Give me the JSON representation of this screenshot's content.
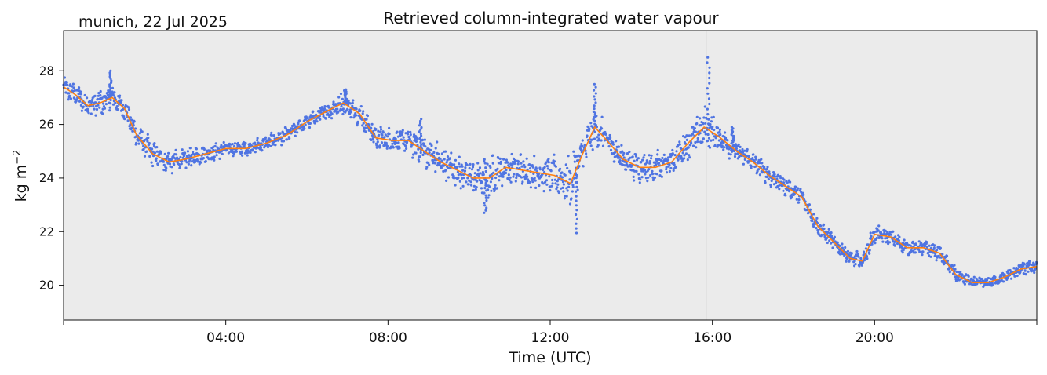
{
  "chart_data": {
    "type": "scatter",
    "title": "Retrieved column-integrated water vapour",
    "location_label": "munich, 22 Jul 2025",
    "xlabel": "Time (UTC)",
    "ylabel": "kg m",
    "ylabel_superscript": "−2",
    "x_unit": "hours UTC",
    "xlim": [
      0,
      24
    ],
    "ylim": [
      18.7,
      29.5
    ],
    "x_ticks": [
      {
        "value": 4,
        "label": "04:00"
      },
      {
        "value": 8,
        "label": "08:00"
      },
      {
        "value": 12,
        "label": "12:00"
      },
      {
        "value": 16,
        "label": "16:00"
      },
      {
        "value": 20,
        "label": "20:00"
      }
    ],
    "y_ticks": [
      {
        "value": 20,
        "label": "20"
      },
      {
        "value": 22,
        "label": "22"
      },
      {
        "value": 24,
        "label": "24"
      },
      {
        "value": 26,
        "label": "26"
      },
      {
        "value": 28,
        "label": "28"
      }
    ],
    "marker_vline": 15.85,
    "colors": {
      "background": "#ebebeb",
      "scatter": "#4169e1",
      "smooth": "#ff7f0e",
      "vline": "#d4d4d4"
    },
    "series": [
      {
        "name": "retrieval",
        "kind": "scatter",
        "x": [
          0.0,
          0.3,
          0.6,
          0.9,
          1.2,
          1.5,
          1.8,
          2.2,
          2.6,
          3.0,
          3.5,
          4.0,
          4.5,
          5.0,
          5.5,
          6.0,
          6.5,
          6.9,
          7.3,
          7.7,
          8.1,
          8.5,
          8.9,
          9.3,
          9.7,
          10.1,
          10.5,
          10.9,
          11.3,
          11.7,
          12.1,
          12.5,
          12.8,
          13.1,
          13.4,
          13.8,
          14.2,
          14.6,
          15.0,
          15.4,
          15.8,
          16.2,
          16.6,
          17.0,
          17.4,
          17.8,
          18.2,
          18.6,
          19.0,
          19.4,
          19.7,
          20.0,
          20.4,
          20.8,
          21.2,
          21.6,
          22.0,
          22.4,
          22.8,
          23.2,
          23.6,
          24.0
        ],
        "y": [
          27.4,
          27.1,
          26.7,
          26.8,
          27.0,
          26.6,
          25.6,
          24.9,
          24.6,
          24.7,
          24.9,
          25.1,
          25.1,
          25.3,
          25.6,
          26.1,
          26.5,
          26.8,
          26.4,
          25.5,
          25.4,
          25.4,
          25.0,
          24.6,
          24.3,
          24.0,
          24.0,
          24.4,
          24.3,
          24.2,
          24.1,
          23.8,
          24.9,
          25.9,
          25.4,
          24.7,
          24.4,
          24.4,
          24.6,
          25.3,
          25.9,
          25.5,
          25.0,
          24.6,
          24.1,
          23.7,
          23.3,
          22.2,
          21.6,
          21.0,
          20.9,
          21.9,
          21.8,
          21.4,
          21.4,
          21.2,
          20.4,
          20.1,
          20.1,
          20.3,
          20.6,
          20.7
        ],
        "spread": [
          0.25,
          0.35,
          0.3,
          0.35,
          0.35,
          0.3,
          0.35,
          0.35,
          0.3,
          0.25,
          0.25,
          0.2,
          0.2,
          0.2,
          0.2,
          0.2,
          0.25,
          0.3,
          0.35,
          0.35,
          0.3,
          0.35,
          0.45,
          0.45,
          0.45,
          0.5,
          0.55,
          0.4,
          0.45,
          0.45,
          0.5,
          0.7,
          0.6,
          0.5,
          0.4,
          0.35,
          0.4,
          0.4,
          0.35,
          0.45,
          0.6,
          0.35,
          0.3,
          0.25,
          0.3,
          0.25,
          0.25,
          0.25,
          0.2,
          0.2,
          0.25,
          0.25,
          0.2,
          0.2,
          0.2,
          0.2,
          0.2,
          0.15,
          0.15,
          0.15,
          0.2,
          0.2
        ]
      },
      {
        "name": "smoothed",
        "kind": "line",
        "x": [
          0.0,
          0.3,
          0.6,
          0.9,
          1.2,
          1.5,
          1.8,
          2.2,
          2.6,
          3.0,
          3.5,
          4.0,
          4.5,
          5.0,
          5.5,
          6.0,
          6.5,
          6.9,
          7.3,
          7.7,
          8.1,
          8.5,
          8.9,
          9.3,
          9.7,
          10.1,
          10.5,
          10.9,
          11.3,
          11.7,
          12.1,
          12.5,
          12.8,
          13.1,
          13.4,
          13.8,
          14.2,
          14.6,
          15.0,
          15.4,
          15.8,
          16.2,
          16.6,
          17.0,
          17.4,
          17.8,
          18.2,
          18.6,
          19.0,
          19.4,
          19.7,
          20.0,
          20.4,
          20.8,
          21.2,
          21.6,
          22.0,
          22.4,
          22.8,
          23.2,
          23.6,
          24.0
        ],
        "y": [
          27.4,
          27.1,
          26.7,
          26.8,
          27.0,
          26.6,
          25.6,
          24.9,
          24.6,
          24.7,
          24.9,
          25.1,
          25.1,
          25.3,
          25.6,
          26.1,
          26.5,
          26.8,
          26.4,
          25.5,
          25.4,
          25.4,
          25.0,
          24.6,
          24.3,
          24.0,
          24.0,
          24.4,
          24.3,
          24.2,
          24.1,
          23.8,
          24.9,
          25.9,
          25.4,
          24.7,
          24.4,
          24.4,
          24.6,
          25.3,
          25.9,
          25.5,
          25.0,
          24.6,
          24.1,
          23.7,
          23.3,
          22.2,
          21.6,
          21.0,
          20.9,
          21.9,
          21.8,
          21.4,
          21.4,
          21.2,
          20.4,
          20.1,
          20.1,
          20.3,
          20.6,
          20.7
        ]
      }
    ],
    "spikes": [
      {
        "x": 1.15,
        "y": 28.0
      },
      {
        "x": 6.95,
        "y": 27.3
      },
      {
        "x": 8.8,
        "y": 26.2
      },
      {
        "x": 10.4,
        "y": 22.7
      },
      {
        "x": 12.65,
        "y": 21.95
      },
      {
        "x": 13.1,
        "y": 27.5
      },
      {
        "x": 15.9,
        "y": 28.5
      },
      {
        "x": 16.5,
        "y": 25.9
      }
    ]
  }
}
